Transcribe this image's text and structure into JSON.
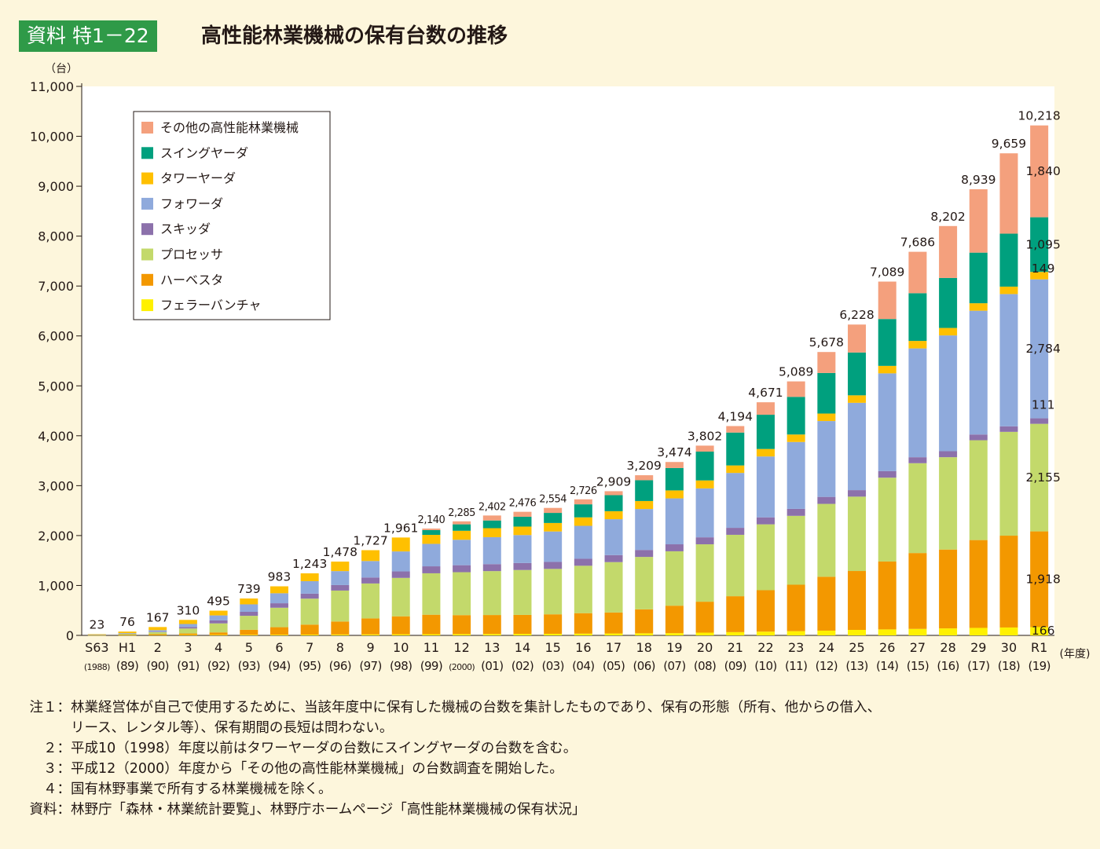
{
  "header": {
    "badge": "資料 特1－22",
    "title": "高性能林業機械の保有台数の推移"
  },
  "chart_data": {
    "type": "bar",
    "stacked": true,
    "y_unit": "（台）",
    "x_unit": "(年度)",
    "ylim": [
      0,
      11000
    ],
    "yticks": [
      "0",
      "1,000",
      "2,000",
      "3,000",
      "4,000",
      "5,000",
      "6,000",
      "7,000",
      "8,000",
      "9,000",
      "10,000",
      "11,000"
    ],
    "categories": [
      "S63",
      "H1",
      "2",
      "3",
      "4",
      "5",
      "6",
      "7",
      "8",
      "9",
      "10",
      "11",
      "12",
      "13",
      "14",
      "15",
      "16",
      "17",
      "18",
      "19",
      "20",
      "21",
      "22",
      "23",
      "24",
      "25",
      "26",
      "27",
      "28",
      "29",
      "30",
      "R1"
    ],
    "category_years": [
      "(1988)",
      "(89)",
      "(90)",
      "(91)",
      "(92)",
      "(93)",
      "(94)",
      "(95)",
      "(96)",
      "(97)",
      "(98)",
      "(99)",
      "(2000)",
      "(01)",
      "(02)",
      "(03)",
      "(04)",
      "(05)",
      "(06)",
      "(07)",
      "(08)",
      "(09)",
      "(10)",
      "(11)",
      "(12)",
      "(13)",
      "(14)",
      "(15)",
      "(16)",
      "(17)",
      "(18)",
      "(19)"
    ],
    "totals": [
      "23",
      "76",
      "167",
      "310",
      "495",
      "739",
      "983",
      "1,243",
      "1,478",
      "1,727",
      "1,961",
      "2,140",
      "2,285",
      "2,402",
      "2,476",
      "2,554",
      "2,726",
      "2,909",
      "3,209",
      "3,474",
      "3,802",
      "4,194",
      "4,671",
      "5,089",
      "5,678",
      "6,228",
      "7,089",
      "7,686",
      "8,202",
      "8,939",
      "9,659",
      "10,218"
    ],
    "series": [
      {
        "name": "フェラーバンチャ",
        "color": "#fff100",
        "values": [
          2,
          3,
          5,
          8,
          10,
          12,
          14,
          16,
          18,
          20,
          22,
          24,
          26,
          28,
          30,
          32,
          35,
          38,
          42,
          45,
          55,
          65,
          75,
          85,
          95,
          110,
          120,
          130,
          140,
          150,
          158,
          166
        ]
      },
      {
        "name": "ハーベスタ",
        "color": "#f39800",
        "values": [
          3,
          10,
          20,
          30,
          50,
          100,
          150,
          200,
          260,
          320,
          360,
          390,
          380,
          380,
          380,
          390,
          410,
          420,
          480,
          550,
          620,
          720,
          830,
          930,
          1080,
          1180,
          1360,
          1520,
          1580,
          1760,
          1840,
          1918
        ]
      },
      {
        "name": "プロセッサ",
        "color": "#c3d96b",
        "values": [
          6,
          20,
          40,
          100,
          180,
          280,
          390,
          520,
          620,
          700,
          770,
          830,
          860,
          880,
          900,
          910,
          950,
          1010,
          1050,
          1090,
          1150,
          1230,
          1320,
          1380,
          1460,
          1490,
          1680,
          1800,
          1850,
          2000,
          2080,
          2155
        ]
      },
      {
        "name": "スキッダ",
        "color": "#8c71ab",
        "values": [
          2,
          3,
          10,
          30,
          60,
          80,
          90,
          100,
          110,
          120,
          130,
          140,
          140,
          140,
          140,
          140,
          140,
          140,
          140,
          140,
          140,
          140,
          140,
          140,
          140,
          130,
          130,
          120,
          120,
          115,
          111,
          111
        ]
      },
      {
        "name": "フォワーダ",
        "color": "#8faadc",
        "values": [
          2,
          10,
          30,
          60,
          100,
          150,
          200,
          250,
          280,
          330,
          400,
          450,
          510,
          540,
          560,
          610,
          660,
          720,
          820,
          920,
          980,
          1100,
          1220,
          1340,
          1520,
          1750,
          1960,
          2180,
          2320,
          2480,
          2650,
          2784
        ]
      },
      {
        "name": "タワーヤーダ",
        "color": "#ffc000",
        "values": [
          8,
          30,
          62,
          82,
          95,
          117,
          139,
          157,
          190,
          217,
          279,
          180,
          180,
          180,
          170,
          170,
          170,
          160,
          160,
          160,
          160,
          150,
          150,
          150,
          150,
          150,
          150,
          150,
          150,
          150,
          149,
          149
        ]
      },
      {
        "name": "スイングヤーダ",
        "color": "#00a07e",
        "values": [
          0,
          0,
          0,
          0,
          0,
          0,
          0,
          0,
          0,
          0,
          0,
          96,
          129,
          154,
          196,
          202,
          261,
          321,
          417,
          449,
          577,
          659,
          686,
          754,
          813,
          858,
          939,
          956,
          1002,
          1014,
          1061,
          1095
        ]
      },
      {
        "name": "その他の高性能林業機械",
        "color": "#f4a07d",
        "values": [
          0,
          0,
          0,
          0,
          0,
          0,
          0,
          0,
          0,
          0,
          0,
          30,
          60,
          100,
          100,
          100,
          100,
          80,
          100,
          120,
          120,
          130,
          250,
          310,
          420,
          560,
          750,
          830,
          1040,
          1270,
          1610,
          1840
        ]
      }
    ],
    "r1_labels": [
      {
        "series": "その他の高性能林業機械",
        "text": "1,840"
      },
      {
        "series": "スイングヤーダ",
        "text": "1,095"
      },
      {
        "series": "タワーヤーダ",
        "text": "149"
      },
      {
        "series": "フォワーダ",
        "text": "2,784"
      },
      {
        "series": "スキッダ",
        "text": "111"
      },
      {
        "series": "プロセッサ",
        "text": "2,155"
      },
      {
        "series": "ハーベスタ",
        "text": "1,918"
      },
      {
        "series": "フェラーバンチャ",
        "text": "166"
      }
    ],
    "legend_order": [
      "その他の高性能林業機械",
      "スイングヤーダ",
      "タワーヤーダ",
      "フォワーダ",
      "スキッダ",
      "プロセッサ",
      "ハーベスタ",
      "フェラーバンチャ"
    ],
    "legend_position": "top-left"
  },
  "notes": [
    {
      "label": "注１：",
      "text": "林業経営体が自己で使用するために、当該年度中に保有した機械の台数を集計したものであり、保有の形態（所有、他からの借入、",
      "cont": "リース、レンタル等）、保有期間の長短は問わない。"
    },
    {
      "label": "２：",
      "text": "平成10（1998）年度以前はタワーヤーダの台数にスイングヤーダの台数を含む。"
    },
    {
      "label": "３：",
      "text": "平成12（2000）年度から「その他の高性能林業機械」の台数調査を開始した。"
    },
    {
      "label": "４：",
      "text": "国有林野事業で所有する林業機械を除く。"
    },
    {
      "label": "資料：",
      "text": "林野庁「森林・林業統計要覧」、林野庁ホームページ「高性能林業機械の保有状況」"
    }
  ]
}
